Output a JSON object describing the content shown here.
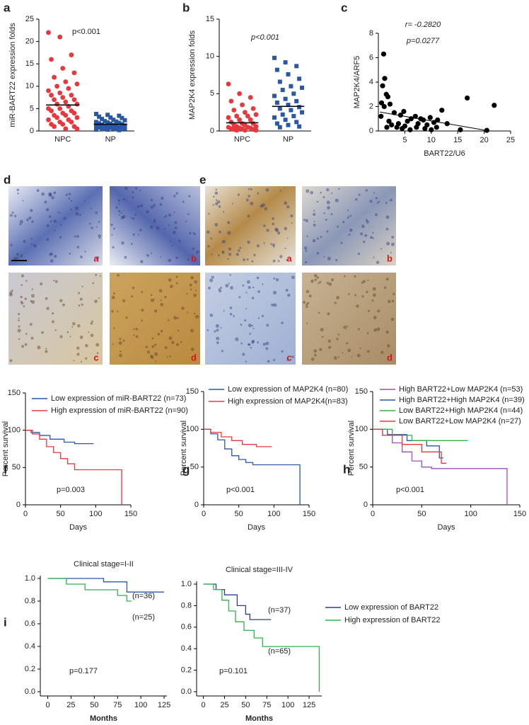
{
  "chart_data": [
    {
      "type": "strip",
      "panel_label": "a",
      "ylabel": "miR-BART22 expression folds",
      "ylim": [
        0,
        25
      ],
      "yticks": [
        0,
        5,
        10,
        15,
        20,
        25
      ],
      "annotations": [
        "p<0.001"
      ],
      "series": [
        {
          "name": "NPC",
          "color": "#e8383d",
          "marker": "circle",
          "mean": 5.8,
          "values": [
            22,
            21,
            17,
            16,
            14,
            13,
            12,
            11,
            10.5,
            10,
            9.5,
            9,
            8.5,
            8,
            8,
            7.5,
            7,
            7,
            6.5,
            6,
            6,
            5.5,
            5,
            5,
            4.5,
            4.5,
            4,
            4,
            3.5,
            3.5,
            3,
            3,
            2.5,
            2.5,
            2,
            2,
            1.5,
            1.5,
            1,
            1,
            0.5,
            0.5
          ]
        },
        {
          "name": "NP",
          "color": "#2a57a6",
          "marker": "square",
          "mean": 1.5,
          "values": [
            3.8,
            3.6,
            3.4,
            3.2,
            3,
            2.9,
            2.7,
            2.5,
            2.4,
            2.2,
            2.1,
            2,
            1.9,
            1.8,
            1.7,
            1.6,
            1.5,
            1.4,
            1.3,
            1.2,
            1.1,
            1,
            1,
            0.9,
            0.8,
            0.8,
            0.7,
            0.6,
            0.6,
            0.5,
            0.5,
            0.4,
            0.4,
            0.3,
            0.3,
            0.2
          ]
        }
      ]
    },
    {
      "type": "strip",
      "panel_label": "b",
      "ylabel": "MAP2K4 expression folds",
      "ylim": [
        0,
        15
      ],
      "yticks": [
        0,
        5,
        10,
        15
      ],
      "annotations": [
        "p<0.001"
      ],
      "series": [
        {
          "name": "NPC",
          "color": "#e8383d",
          "marker": "circle",
          "mean": 1.1,
          "values": [
            6.3,
            5,
            4.5,
            4,
            3.5,
            3,
            2.8,
            2.5,
            2.2,
            2,
            2,
            1.8,
            1.5,
            1.5,
            1.2,
            1,
            1,
            0.8,
            0.8,
            0.6,
            0.6,
            0.5,
            0.5,
            0.4,
            0.4,
            0.3,
            0.3,
            0.2,
            0.2,
            0.1,
            0.1,
            0.1
          ]
        },
        {
          "name": "NP",
          "color": "#2a57a6",
          "marker": "square",
          "mean": 3.3,
          "values": [
            9.8,
            9.2,
            8.7,
            8.2,
            7.6,
            7,
            6.6,
            6,
            5.8,
            5.5,
            5,
            4.7,
            4.3,
            4,
            3.8,
            3.5,
            3.2,
            3,
            2.8,
            2.5,
            2.2,
            2,
            1.8,
            1.5,
            1.2,
            1,
            0.8,
            0.6,
            0.5
          ]
        }
      ]
    },
    {
      "type": "scatter",
      "panel_label": "c",
      "xlabel": "BART22/U6",
      "ylabel": "MAP2K4/ARF5",
      "xlim": [
        0,
        25
      ],
      "xticks": [
        5,
        10,
        15,
        20,
        25
      ],
      "ylim": [
        0,
        8
      ],
      "yticks": [
        0,
        2,
        4,
        6,
        8
      ],
      "annotations": [
        "r= -0.2820",
        "p=0.0277"
      ],
      "series": [
        {
          "color": "#000000",
          "x": [
            1,
            1.2,
            0.8,
            1.5,
            1.8,
            0.6,
            1.1,
            2.2,
            3,
            4.2,
            4.8,
            5.5,
            6.2,
            7,
            7.5,
            8,
            8.5,
            9.2,
            9.8,
            10.5,
            11.2,
            12,
            2.5,
            3.5,
            4.5,
            5,
            6,
            7.2,
            8.8,
            10,
            11,
            2,
            3.8,
            16.8,
            21.9,
            20.5,
            15.5,
            13,
            0.5,
            1.6
          ],
          "values": [
            6.3,
            4.3,
            3.7,
            3,
            2.8,
            2.3,
            2,
            2.2,
            1.5,
            1.3,
            1.6,
            0.8,
            1,
            1.2,
            0.6,
            1,
            0.9,
            0.5,
            1.1,
            0.7,
            0.9,
            1.7,
            0.5,
            0.3,
            0.2,
            0.4,
            0.1,
            0.3,
            0.2,
            0.1,
            0.3,
            0.8,
            0.6,
            2.7,
            2.1,
            0.05,
            0.1,
            0.6,
            1.2,
            0.3
          ]
        }
      ],
      "trend_line": {
        "x": [
          0.3,
          21
        ],
        "values": [
          1.55,
          0
        ]
      }
    },
    {
      "type": "line",
      "panel_label": "f",
      "xlabel": "Days",
      "ylabel": "Percent survival",
      "xlim": [
        0,
        150
      ],
      "xticks": [
        0,
        50,
        100,
        150
      ],
      "ylim": [
        0,
        150
      ],
      "yticks": [
        0,
        50,
        100,
        150
      ],
      "annotations": [
        "p=0.003"
      ],
      "legend": true,
      "series": [
        {
          "name": "Low expression of miR-BART22 (n=73)",
          "color": "#2a57a6",
          "x": [
            0,
            8,
            8,
            20,
            20,
            35,
            35,
            55,
            55,
            70,
            70,
            97
          ],
          "values": [
            100,
            100,
            97,
            97,
            93,
            93,
            88,
            88,
            84,
            84,
            82,
            82
          ]
        },
        {
          "name": "High expression of miR-BART22 (n=90)",
          "color": "#e8383d",
          "x": [
            0,
            10,
            10,
            20,
            20,
            30,
            30,
            40,
            40,
            50,
            50,
            60,
            60,
            70,
            70,
            137,
            137
          ],
          "values": [
            100,
            100,
            95,
            95,
            88,
            88,
            78,
            78,
            70,
            70,
            62,
            62,
            55,
            55,
            47,
            47,
            0
          ]
        }
      ]
    },
    {
      "type": "line",
      "panel_label": "g",
      "xlabel": "Days",
      "ylabel": "Percent survival",
      "xlim": [
        0,
        150
      ],
      "xticks": [
        0,
        50,
        100,
        150
      ],
      "ylim": [
        0,
        150
      ],
      "yticks": [
        0,
        50,
        100,
        150
      ],
      "annotations": [
        "p<0.001"
      ],
      "legend": true,
      "series": [
        {
          "name": "Low expression of MAP2K4 (n=80)",
          "color": "#2a57a6",
          "x": [
            0,
            10,
            10,
            20,
            20,
            30,
            30,
            40,
            40,
            50,
            50,
            60,
            60,
            70,
            70,
            137,
            137
          ],
          "values": [
            100,
            100,
            94,
            94,
            86,
            86,
            74,
            74,
            65,
            65,
            60,
            60,
            56,
            56,
            53,
            53,
            0
          ]
        },
        {
          "name": "High expression of MAP2K4(n=83)",
          "color": "#e8383d",
          "x": [
            0,
            10,
            10,
            25,
            25,
            40,
            40,
            55,
            55,
            75,
            75,
            97
          ],
          "values": [
            100,
            100,
            96,
            96,
            90,
            90,
            85,
            85,
            80,
            80,
            77,
            77
          ]
        }
      ]
    },
    {
      "type": "line",
      "panel_label": "h",
      "xlabel": "Days",
      "ylabel": "Percent survival",
      "xlim": [
        0,
        150
      ],
      "xticks": [
        0,
        50,
        100,
        150
      ],
      "ylim": [
        0,
        150
      ],
      "yticks": [
        0,
        50,
        100,
        150
      ],
      "annotations": [
        "p<0.001"
      ],
      "legend": true,
      "series": [
        {
          "name": "High BART22+Low  MAP2K4 (n=53)",
          "color": "#9b4fc0",
          "x": [
            0,
            10,
            10,
            20,
            20,
            30,
            30,
            40,
            40,
            50,
            50,
            60,
            60,
            137,
            137
          ],
          "values": [
            100,
            100,
            92,
            92,
            82,
            82,
            70,
            70,
            58,
            58,
            50,
            50,
            48,
            48,
            0
          ]
        },
        {
          "name": "High BART22+High MAP2K4 (n=39)",
          "color": "#2a57a6",
          "x": [
            0,
            15,
            15,
            35,
            35,
            55,
            55,
            68,
            68,
            72
          ],
          "values": [
            100,
            100,
            93,
            93,
            85,
            85,
            78,
            78,
            62,
            62
          ]
        },
        {
          "name": "Low  BART22+High MAP2K4 (n=44)",
          "color": "#2fb34a",
          "x": [
            0,
            20,
            20,
            40,
            40,
            97
          ],
          "values": [
            100,
            100,
            92,
            92,
            85,
            85
          ]
        },
        {
          "name": "Low  BART22+Low  MAP2K4 (n=27)",
          "color": "#e8383d",
          "x": [
            0,
            10,
            10,
            30,
            30,
            50,
            50,
            70,
            70,
            75
          ],
          "values": [
            100,
            100,
            92,
            92,
            80,
            80,
            70,
            70,
            55,
            55
          ]
        }
      ]
    },
    {
      "type": "line",
      "panel_label": "i",
      "title": "Clinical stage=I-II",
      "xlabel": "Months",
      "xlim": [
        -8,
        128
      ],
      "xticks": [
        0,
        25,
        50,
        75,
        100,
        125
      ],
      "ylim": [
        0,
        1
      ],
      "yticks": [
        {
          "value": 0,
          "label": "0.0"
        },
        {
          "value": 0.2,
          "label": "0.2"
        },
        {
          "value": 0.4,
          "label": "0.4"
        },
        {
          "value": 0.6,
          "label": "0.6"
        },
        {
          "value": 0.8,
          "label": "0.8"
        },
        {
          "value": 1,
          "label": "1.0"
        }
      ],
      "annotations": [
        "(n=36)",
        "(n=25)",
        "p=0.177"
      ],
      "series": [
        {
          "color": "#2a57a6",
          "x": [
            0,
            60,
            60,
            85,
            85,
            125
          ],
          "values": [
            1,
            1,
            0.97,
            0.97,
            0.88,
            0.88
          ]
        },
        {
          "color": "#2fb34a",
          "x": [
            0,
            20,
            20,
            40,
            40,
            75,
            75,
            85,
            85,
            90
          ],
          "values": [
            1,
            1,
            0.95,
            0.95,
            0.9,
            0.9,
            0.85,
            0.85,
            0.8,
            0.8
          ]
        }
      ]
    },
    {
      "type": "line",
      "title": "Clinical stage=III-IV",
      "xlabel": "Months",
      "xlim": [
        -8,
        140
      ],
      "xticks": [
        0,
        25,
        50,
        75,
        100,
        125
      ],
      "ylim": [
        0,
        1
      ],
      "yticks": [
        {
          "value": 0,
          "label": "0.0"
        },
        {
          "value": 0.2,
          "label": "0.2"
        },
        {
          "value": 0.4,
          "label": "0.4"
        },
        {
          "value": 0.6,
          "label": "0.6"
        },
        {
          "value": 0.8,
          "label": "0.8"
        },
        {
          "value": 1,
          "label": "1.0"
        }
      ],
      "annotations": [
        "(n=37)",
        "(n=65)",
        "p=0.101"
      ],
      "legend": true,
      "series": [
        {
          "name": "Low expression of BART22",
          "color": "#2a3f8f",
          "x": [
            0,
            15,
            15,
            25,
            25,
            40,
            40,
            50,
            50,
            55,
            55,
            80
          ],
          "values": [
            1,
            1,
            0.95,
            0.95,
            0.9,
            0.9,
            0.8,
            0.8,
            0.72,
            0.72,
            0.67,
            0.67
          ]
        },
        {
          "name": "High expression of BART22",
          "color": "#2fb34a",
          "x": [
            0,
            12,
            12,
            22,
            22,
            30,
            30,
            38,
            38,
            48,
            48,
            60,
            60,
            70,
            70,
            137,
            137
          ],
          "values": [
            1,
            1,
            0.95,
            0.95,
            0.85,
            0.85,
            0.75,
            0.75,
            0.65,
            0.65,
            0.57,
            0.57,
            0.5,
            0.5,
            0.42,
            0.42,
            0
          ]
        }
      ]
    }
  ],
  "image_panels": [
    {
      "label": "d",
      "tiles": [
        "a",
        "b",
        "c",
        "d"
      ]
    },
    {
      "label": "e",
      "tiles": [
        "a",
        "b",
        "c",
        "d"
      ]
    }
  ]
}
